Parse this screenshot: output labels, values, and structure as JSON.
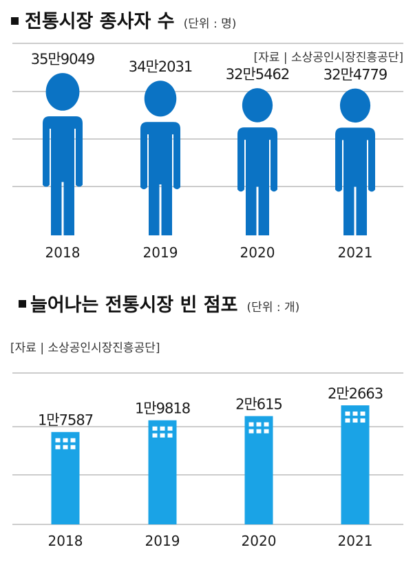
{
  "charts": [
    {
      "title": "전통시장 종사자 수",
      "unit": "(단위 : 명)",
      "source": "[자료 | 소상공인시장진흥공단]"
    },
    {
      "title": "늘어나는 전통시장 빈 점포",
      "unit": "(단위 : 개)",
      "source": "[자료 | 소상공인시장진흥공단]"
    }
  ],
  "chart_data": [
    {
      "type": "bar",
      "title": "전통시장 종사자 수",
      "unit": "명",
      "categories": [
        "2018",
        "2019",
        "2020",
        "2021"
      ],
      "values": [
        359049,
        342031,
        325462,
        324779
      ],
      "value_labels": [
        "35만9049",
        "34만2031",
        "32만5462",
        "32만4779"
      ],
      "mark": "person-icon",
      "color": "#0b73c4",
      "grid": true
    },
    {
      "type": "bar",
      "title": "늘어나는 전통시장 빈 점포",
      "unit": "개",
      "categories": [
        "2018",
        "2019",
        "2020",
        "2021"
      ],
      "values": [
        17587,
        19818,
        20615,
        22663
      ],
      "value_labels": [
        "1만7587",
        "1만9818",
        "2만615",
        "2만2663"
      ],
      "mark": "building-icon",
      "color": "#1aa3e6",
      "grid": true
    }
  ]
}
